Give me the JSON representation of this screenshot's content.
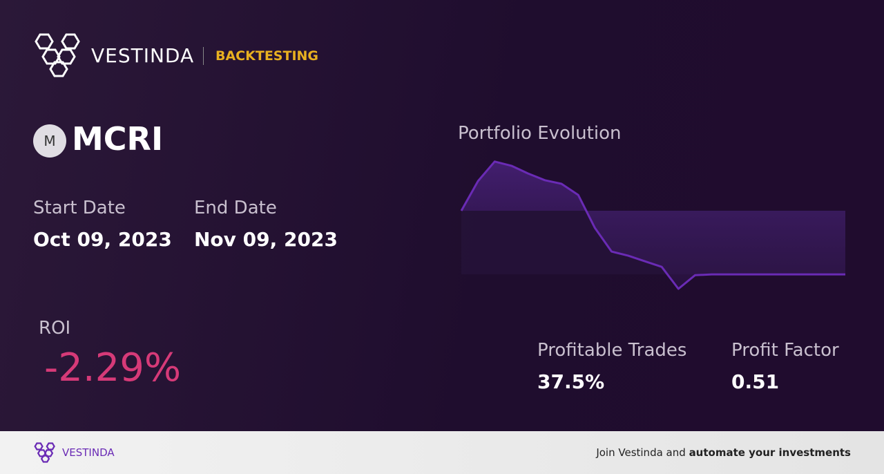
{
  "header": {
    "brand": "VESTINDA",
    "section": "BACKTESTING"
  },
  "ticker": {
    "icon": "M",
    "symbol": "MCRI"
  },
  "dates": {
    "start_label": "Start Date",
    "start": "Oct 09, 2023",
    "end_label": "End Date",
    "end": "Nov 09, 2023"
  },
  "roi": {
    "label": "ROI",
    "value": "-2.29%"
  },
  "stats": {
    "profitable_trades_label": "Profitable Trades",
    "profitable_trades": "37.5%",
    "profit_factor_label": "Profit Factor",
    "profit_factor": "0.51"
  },
  "chart_data": {
    "type": "line",
    "title": "Portfolio Evolution",
    "color": "#6a2bb5",
    "values": [
      0,
      1.07,
      1.77,
      1.62,
      1.34,
      1.1,
      0.97,
      0.57,
      -0.62,
      -1.47,
      -1.62,
      -1.82,
      -2.02,
      -2.81,
      -2.32,
      -2.29,
      -2.29,
      -2.29,
      -2.29,
      -2.29,
      -2.29,
      -2.29,
      -2.29,
      -2.29
    ]
  },
  "footer": {
    "brand": "VESTINDA",
    "text": "Join Vestinda and",
    "bold_text": "automate your investments"
  }
}
